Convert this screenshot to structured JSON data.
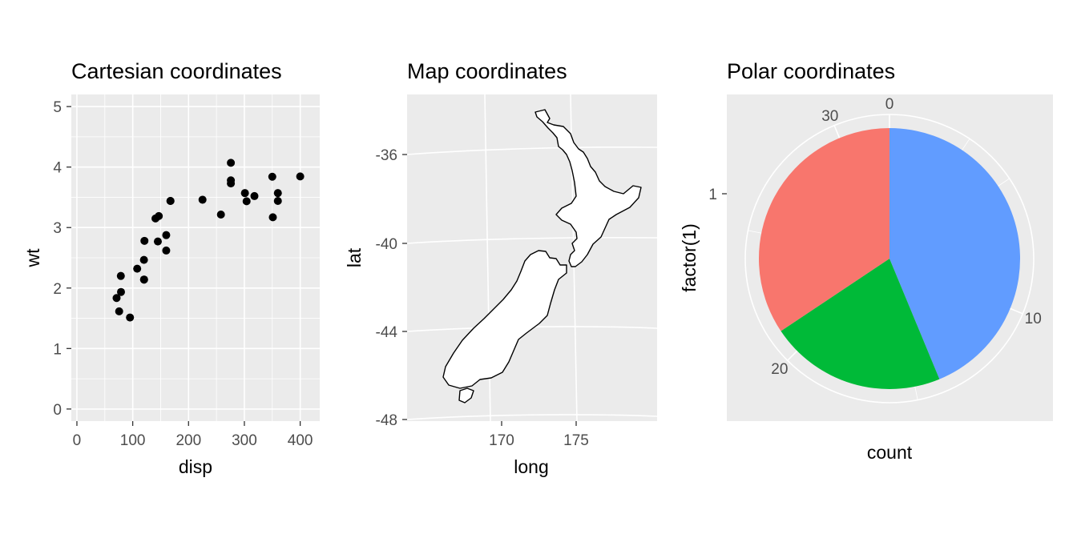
{
  "chart_data": [
    {
      "type": "scatter",
      "title": "Cartesian coordinates",
      "xlabel": "disp",
      "ylabel": "wt",
      "xlim": [
        -10,
        435
      ],
      "ylim": [
        -0.2,
        5.2
      ],
      "x_ticks": [
        0,
        100,
        200,
        300,
        400
      ],
      "y_ticks": [
        0,
        1,
        2,
        3,
        4,
        5
      ],
      "grid": true,
      "points": [
        {
          "x": 160,
          "y": 2.62
        },
        {
          "x": 160,
          "y": 2.875
        },
        {
          "x": 108,
          "y": 2.32
        },
        {
          "x": 258,
          "y": 3.215
        },
        {
          "x": 360,
          "y": 3.44
        },
        {
          "x": 225,
          "y": 3.46
        },
        {
          "x": 360,
          "y": 3.57
        },
        {
          "x": 146.7,
          "y": 3.19
        },
        {
          "x": 140.8,
          "y": 3.15
        },
        {
          "x": 167.6,
          "y": 3.44
        },
        {
          "x": 167.6,
          "y": 3.44
        },
        {
          "x": 275.8,
          "y": 4.07
        },
        {
          "x": 275.8,
          "y": 3.73
        },
        {
          "x": 275.8,
          "y": 3.78
        },
        {
          "x": 78.7,
          "y": 2.2
        },
        {
          "x": 75.7,
          "y": 1.615
        },
        {
          "x": 71.1,
          "y": 1.835
        },
        {
          "x": 120.1,
          "y": 2.465
        },
        {
          "x": 318,
          "y": 3.52
        },
        {
          "x": 304,
          "y": 3.435
        },
        {
          "x": 350,
          "y": 3.84
        },
        {
          "x": 400,
          "y": 3.845
        },
        {
          "x": 79,
          "y": 1.935
        },
        {
          "x": 120.3,
          "y": 2.14
        },
        {
          "x": 95.1,
          "y": 1.513
        },
        {
          "x": 351,
          "y": 3.17
        },
        {
          "x": 145,
          "y": 2.77
        },
        {
          "x": 121,
          "y": 2.78
        },
        {
          "x": 301,
          "y": 3.57
        },
        {
          "x": 120.3,
          "y": 2.14
        }
      ]
    },
    {
      "type": "map",
      "title": "Map coordinates",
      "xlabel": "long",
      "ylabel": "lat",
      "xlim": [
        165.5,
        179.0
      ],
      "ylim": [
        -48,
        -34
      ],
      "x_ticks": [
        170,
        175
      ],
      "y_ticks": [
        -36,
        -40,
        -44,
        -48
      ],
      "grid": true,
      "region": "New Zealand outline"
    },
    {
      "type": "pie",
      "title": "Polar coordinates",
      "xlabel": "count",
      "ylabel": "factor(1)",
      "y_tick": "1",
      "r_ticks": [
        0,
        10,
        20,
        30
      ],
      "total": 32,
      "slices": [
        {
          "label": "",
          "value": 14,
          "color": "#619CFF"
        },
        {
          "label": "",
          "value": 7,
          "color": "#00BA38"
        },
        {
          "label": "",
          "value": 11,
          "color": "#F8766D"
        }
      ]
    }
  ]
}
